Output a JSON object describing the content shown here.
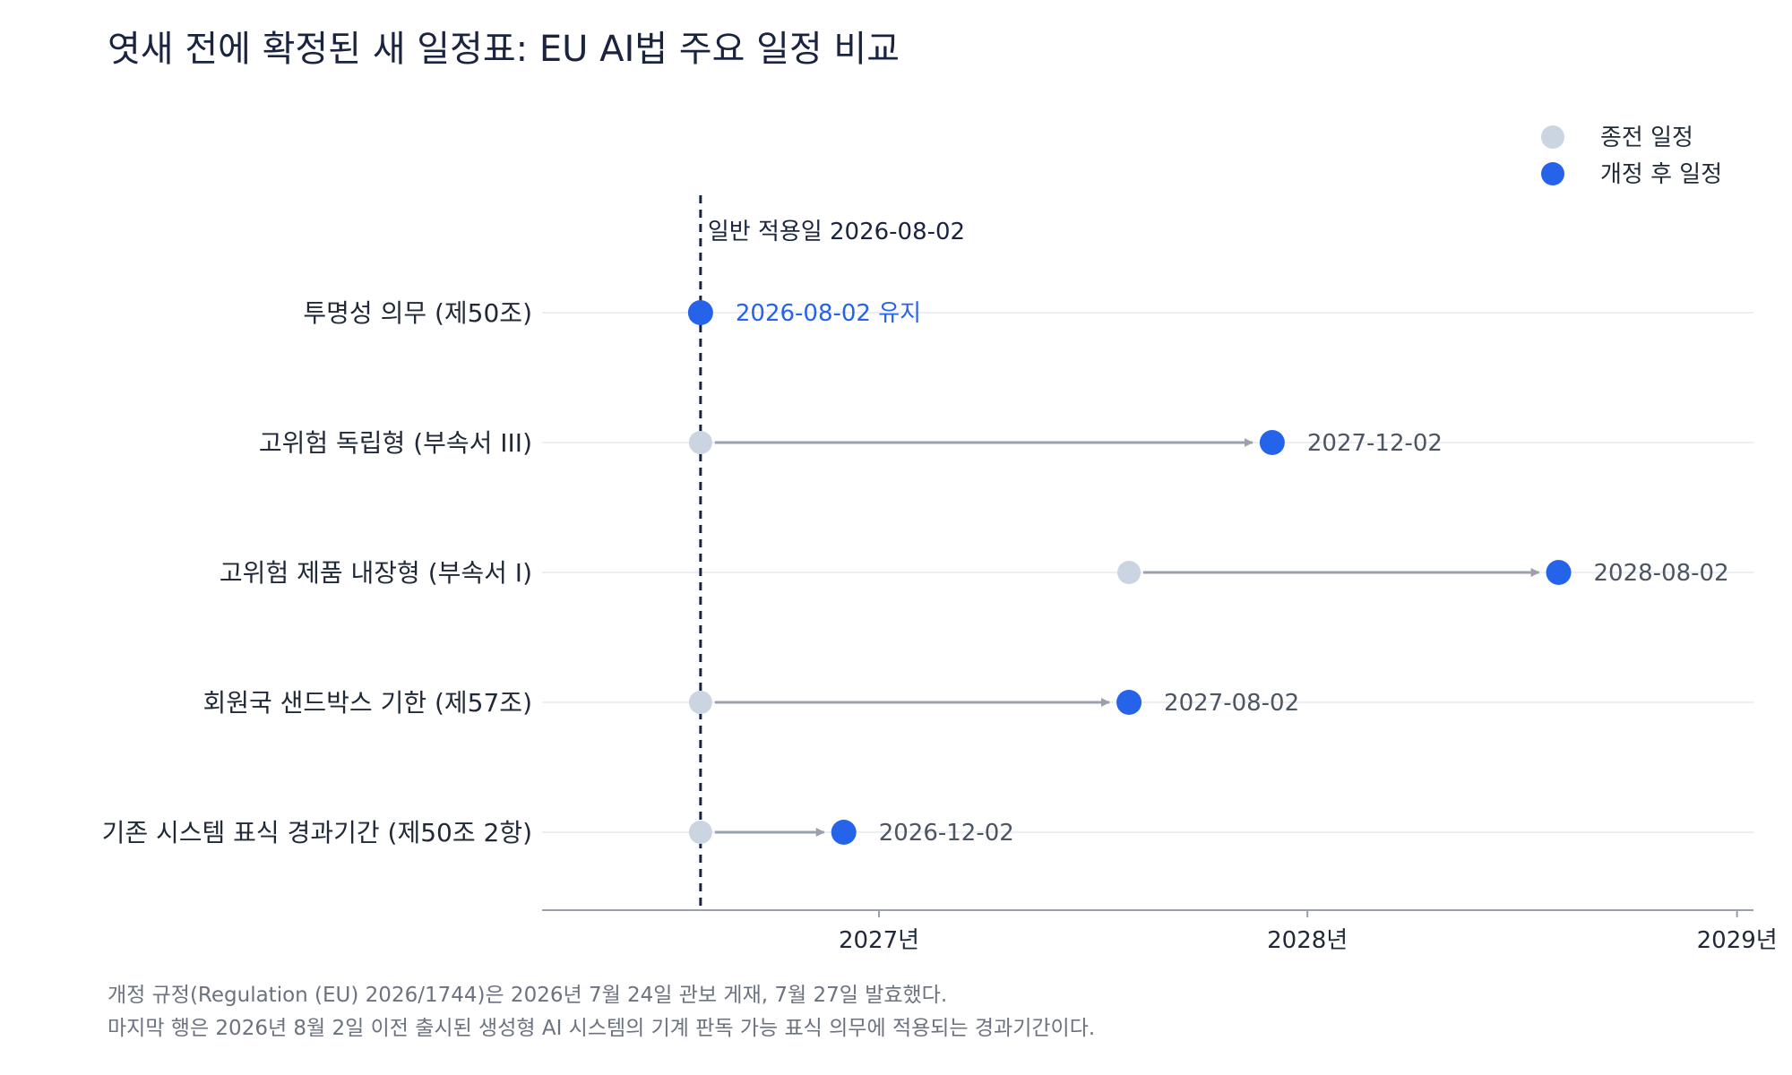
{
  "chart_data": {
    "type": "dumbbell",
    "title": "엿새 전에 확정된 새 일정표: EU AI법 주요 일정 비교",
    "legend": {
      "placement": "top-right",
      "old_label": "종전 일정",
      "new_label": "개정 후 일정"
    },
    "reference_line": {
      "date": "2026-08-02",
      "label": "일반 적용일 2026-08-02"
    },
    "x_ticks": [
      {
        "date": "2027-01-01",
        "label": "2027년"
      },
      {
        "date": "2028-01-01",
        "label": "2028년"
      },
      {
        "date": "2029-01-01",
        "label": "2029년"
      }
    ],
    "xlim": [
      "2026-03-20",
      "2029-01-15"
    ],
    "rows": [
      {
        "label": "투명성 의무 (제50조)",
        "old": "2026-08-02",
        "new": "2026-08-02",
        "value_label": "2026-08-02 유지",
        "unchanged": true
      },
      {
        "label": "고위험 독립형 (부속서 III)",
        "old": "2026-08-02",
        "new": "2027-12-02",
        "value_label": "2027-12-02",
        "unchanged": false
      },
      {
        "label": "고위험 제품 내장형 (부속서 I)",
        "old": "2027-08-02",
        "new": "2028-08-02",
        "value_label": "2028-08-02",
        "unchanged": false
      },
      {
        "label": "회원국 샌드박스 기한 (제57조)",
        "old": "2026-08-02",
        "new": "2027-08-02",
        "value_label": "2027-08-02",
        "unchanged": false
      },
      {
        "label": "기존 시스템 표식 경과기간 (제50조 2항)",
        "old": "2026-08-02",
        "new": "2026-12-02",
        "value_label": "2026-12-02",
        "unchanged": false
      }
    ],
    "colors": {
      "old": "#cbd5e1",
      "new": "#2563eb",
      "arrow": "#9aa1ad",
      "reference": "#1a2440",
      "grid": "#eceef2",
      "axis": "#9aa1ad",
      "text": "#1f2937",
      "value_text": "#4b5563"
    }
  },
  "footnotes": [
    "개정 규정(Regulation (EU) 2026/1744)은 2026년 7월 24일 관보 게재, 7월 27일 발효했다.",
    "마지막 행은 2026년 8월 2일 이전 출시된 생성형 AI 시스템의 기계 판독 가능 표식 의무에 적용되는 경과기간이다."
  ]
}
